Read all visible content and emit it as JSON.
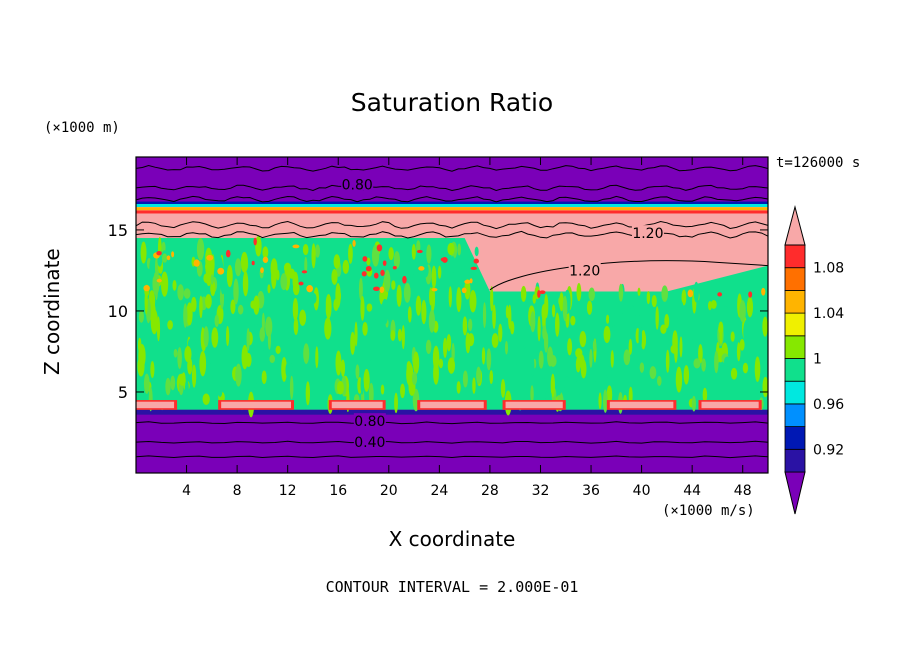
{
  "chart_data": {
    "type": "heatmap",
    "title": "Saturation Ratio",
    "xlabel": "X coordinate",
    "ylabel": "Z coordinate",
    "x_unit": "(×1000 m/s)",
    "y_unit": "(×1000 m)",
    "time_label": "t=126000 s",
    "footer": "CONTOUR INTERVAL = 2.000E-01",
    "xlim": [
      0,
      50
    ],
    "ylim": [
      0,
      19.5
    ],
    "x_ticks": [
      4,
      8,
      12,
      16,
      20,
      24,
      28,
      32,
      36,
      40,
      44,
      48
    ],
    "y_ticks": [
      5,
      10,
      15
    ],
    "colorbar": {
      "levels": [
        0.92,
        0.96,
        1,
        1.04,
        1.08
      ],
      "labels": [
        "0.92",
        "0.96",
        "1",
        "1.04",
        "1.08"
      ],
      "colors": [
        "#7a00b8",
        "#2a12a4",
        "#0018b4",
        "#0090ff",
        "#00e8e0",
        "#10e08c",
        "#86e800",
        "#f0f000",
        "#ffb400",
        "#ff7000",
        "#ff2c2c",
        "#f8a8a8"
      ]
    },
    "contour_labels": [
      {
        "text": "0.80",
        "x": 17.5,
        "y": 17.8
      },
      {
        "text": "1.20",
        "x": 40.5,
        "y": 14.8
      },
      {
        "text": "1.20",
        "x": 35.5,
        "y": 12.5
      },
      {
        "text": "0.80",
        "x": 18.5,
        "y": 3.2
      },
      {
        "text": "0.40",
        "x": 18.5,
        "y": 1.9
      }
    ],
    "bands": [
      {
        "z": [
          0,
          3.6
        ],
        "value": 0.4
      },
      {
        "z": [
          3.6,
          3.85
        ],
        "value": 0.92
      },
      {
        "z": [
          3.85,
          4.6
        ],
        "value": 1.08
      },
      {
        "z": [
          4.6,
          12.5
        ],
        "value": 1.0
      },
      {
        "z": [
          12.5,
          15.9
        ],
        "value": 1.2
      },
      {
        "z": [
          15.9,
          16.6
        ],
        "value": 1.04
      },
      {
        "z": [
          16.6,
          19.5
        ],
        "value": 0.8
      }
    ]
  },
  "colors": {
    "purple": "#7a00b8",
    "dark_blue": "#2a12a4",
    "green": "#10e08c",
    "lime": "#86e800",
    "pink": "#f8a8a8",
    "red": "#ff2c2c",
    "orange": "#ffb400",
    "cyan": "#00e8e0"
  }
}
